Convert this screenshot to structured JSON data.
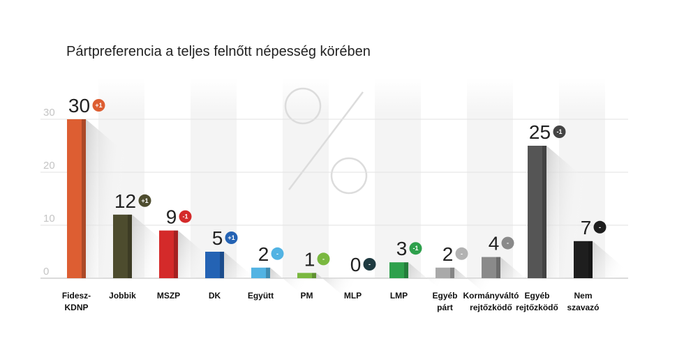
{
  "chart_data": {
    "type": "bar",
    "title": "Pártpreferencia a teljes felnőtt népesség körében",
    "xlabel": "",
    "ylabel": "",
    "ylim": [
      0,
      30
    ],
    "yticks": [
      "0",
      "10",
      "20",
      "30"
    ],
    "grid": true,
    "categories": [
      [
        "Fidesz-",
        "KDNP"
      ],
      [
        "Jobbik"
      ],
      [
        "MSZP"
      ],
      [
        "DK"
      ],
      [
        "Együtt"
      ],
      [
        "PM"
      ],
      [
        "MLP"
      ],
      [
        "LMP"
      ],
      [
        "Egyéb",
        "párt"
      ],
      [
        "Kormányváltó",
        "rejtőzködő"
      ],
      [
        "Egyéb",
        "rejtőzködő"
      ],
      [
        "Nem",
        "szavazó"
      ]
    ],
    "values": [
      30,
      12,
      9,
      5,
      2,
      1,
      0,
      3,
      2,
      4,
      25,
      7
    ],
    "value_labels": [
      "30",
      "12",
      "9",
      "5",
      "2",
      "1",
      "0",
      "3",
      "2",
      "4",
      "25",
      "7"
    ],
    "changes": [
      "+1",
      "+1",
      "-1",
      "+1",
      "-",
      "-",
      "-",
      "-1",
      "-",
      "-",
      "-1",
      "-"
    ],
    "colors": [
      "#dd5e32",
      "#4d4c2e",
      "#d42a2a",
      "#2463b4",
      "#52b3e3",
      "#7ab840",
      "#1e3a40",
      "#2ea04c",
      "#a9a9a9",
      "#8a8a8a",
      "#555555",
      "#1e1e1e"
    ],
    "badge_colors": [
      "#dd5e32",
      "#4d4c2e",
      "#d42a2a",
      "#2463b4",
      "#52b3e3",
      "#7ab840",
      "#1e3a40",
      "#2ea04c",
      "#b2b2b2",
      "#8a8a8a",
      "#444444",
      "#1e1e1e"
    ]
  }
}
